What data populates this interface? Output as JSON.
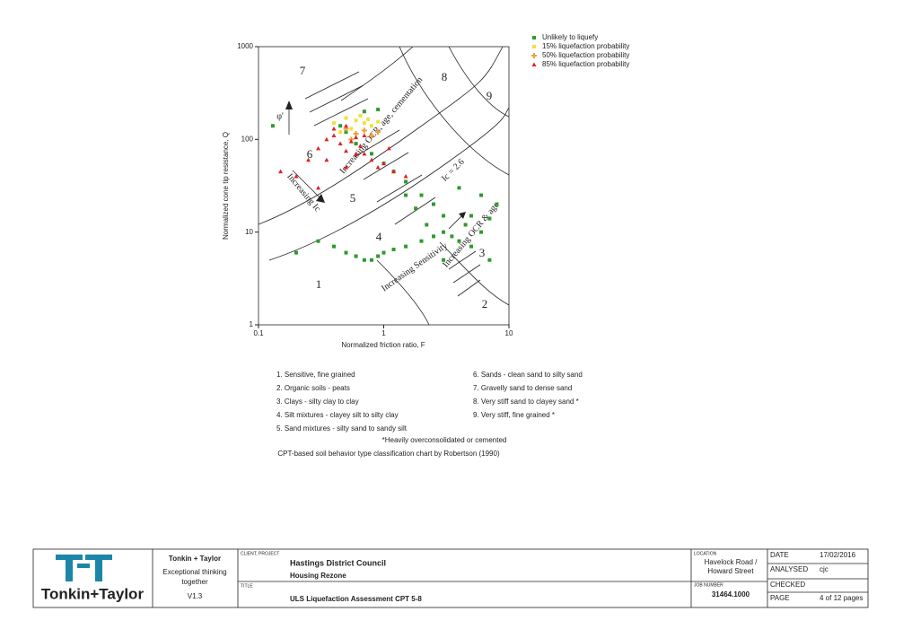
{
  "chart_data": {
    "type": "scatter",
    "xlabel": "Normalized friction ratio, F",
    "ylabel": "Normalized cone tip resistance, Q",
    "xscale": "log",
    "yscale": "log",
    "xlim": [
      0.1,
      10
    ],
    "ylim": [
      1,
      1000
    ],
    "xticks": [
      0.1,
      1,
      10
    ],
    "yticks": [
      1,
      10,
      100,
      1000
    ],
    "legend": "top-right",
    "zone_labels": [
      "1",
      "2",
      "3",
      "4",
      "5",
      "6",
      "7",
      "8",
      "9"
    ],
    "annotations": [
      "Increasing OCR, age, cementation",
      "Increasing Ic",
      "Increasing Sensitivity",
      "Increasing OCR & age",
      "Ic = 2.6",
      "φ'"
    ],
    "series": [
      {
        "name": "Unlikely to liquefy",
        "color": "#2e9a2e",
        "marker": "square",
        "x": [
          0.13,
          0.3,
          0.4,
          0.5,
          0.6,
          0.7,
          0.8,
          0.9,
          1.0,
          1.2,
          1.5,
          2,
          2.5,
          3,
          3.5,
          4,
          5,
          6,
          7,
          3,
          2.5,
          2,
          1.5,
          1.2,
          1,
          0.8,
          0.6,
          0.5,
          0.45,
          1.5,
          4,
          6,
          8,
          5,
          0.7,
          0.9,
          3,
          2.2,
          1.8,
          0.2,
          4.5,
          7
        ],
        "values": [
          140,
          8,
          7,
          6,
          5.5,
          5,
          5,
          5.5,
          6,
          6.5,
          7,
          8,
          9,
          10,
          9,
          8,
          7,
          10,
          14,
          15,
          20,
          25,
          35,
          45,
          55,
          70,
          90,
          120,
          140,
          25,
          30,
          25,
          20,
          15,
          200,
          210,
          5,
          12,
          18,
          6,
          12,
          5
        ]
      },
      {
        "name": "15% liquefaction probability",
        "color": "#f0e040",
        "marker": "square",
        "x": [
          0.4,
          0.5,
          0.6,
          0.7,
          0.8,
          0.55,
          0.65,
          0.75,
          0.9,
          0.45
        ],
        "values": [
          150,
          170,
          160,
          150,
          140,
          130,
          180,
          165,
          155,
          120
        ]
      },
      {
        "name": "50% liquefaction probability",
        "color": "#f0a040",
        "marker": "plus",
        "x": [
          0.5,
          0.6,
          0.7,
          0.8,
          0.9,
          0.55
        ],
        "values": [
          130,
          115,
          125,
          110,
          120,
          100
        ]
      },
      {
        "name": "85% liquefaction probability",
        "color": "#e02020",
        "marker": "triangle",
        "x": [
          0.15,
          0.2,
          0.25,
          0.3,
          0.35,
          0.4,
          0.45,
          0.5,
          0.55,
          0.6,
          0.65,
          0.7,
          0.8,
          0.9,
          1.0,
          1.2,
          1.5,
          0.35,
          0.4,
          0.5,
          0.6,
          0.3,
          0.5,
          0.7,
          1.1
        ],
        "values": [
          45,
          40,
          60,
          80,
          100,
          110,
          90,
          75,
          95,
          105,
          85,
          70,
          60,
          50,
          55,
          45,
          40,
          60,
          130,
          140,
          70,
          30,
          50,
          110,
          80
        ]
      }
    ]
  },
  "notes": {
    "left": [
      "1. Sensitive, fine grained",
      "2. Organic soils - peats",
      "3. Clays - silty clay to clay",
      "4. Silt mixtures - clayey silt to silty clay",
      "5. Sand mixtures - silty sand to sandy silt"
    ],
    "right": [
      "6. Sands - clean sand to silty sand",
      "7. Gravelly sand to dense sand",
      "8. Very stiff sand to clayey sand *",
      "9. Very stiff, fine grained *"
    ],
    "footnote": "*Heavily overconsolidated or cemented",
    "caption": "CPT-based soil behavior type classification chart by Robertson (1990)"
  },
  "title_block": {
    "logo": "Tonkin+Taylor",
    "company": "Tonkin + Taylor",
    "tagline": [
      "Exceptional thinking",
      "together"
    ],
    "version": "V1.3",
    "client_label": "CLIENT, PROJECT",
    "client": "Hastings District Council",
    "project": "Housing Rezone",
    "title_label": "TITLE",
    "title": "ULS Liquefaction Assessment CPT 5-8",
    "location_label": "LOCATION",
    "location": [
      "Havelock Road /",
      "Howard Street"
    ],
    "job_label": "JOB NUMBER",
    "job": "31464.1000",
    "date_label": "DATE",
    "date": "17/02/2016",
    "analysed_label": "ANALYSED",
    "analysed": "cjc",
    "checked_label": "CHECKED",
    "page_label": "PAGE",
    "page": "4 of 12 pages"
  }
}
